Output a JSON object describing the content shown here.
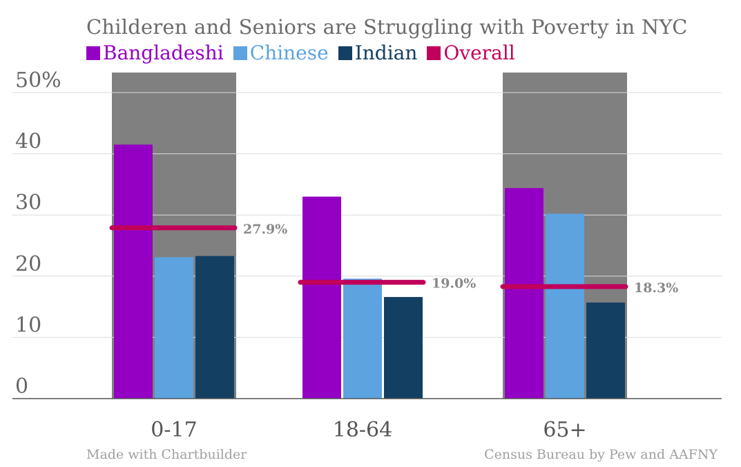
{
  "chart_data": {
    "type": "bar",
    "title": "Childeren and Seniors are Struggling with Poverty in NYC",
    "categories": [
      "0-17",
      "18-64",
      "65+"
    ],
    "series": [
      {
        "name": "Bangladeshi",
        "color": "#9400c3",
        "values": [
          41.5,
          33.0,
          34.4
        ]
      },
      {
        "name": "Chinese",
        "color": "#5ca3e0",
        "values": [
          23.1,
          19.6,
          30.2
        ]
      },
      {
        "name": "Indian",
        "color": "#133f63",
        "values": [
          23.3,
          16.6,
          15.7
        ]
      }
    ],
    "overall": {
      "name": "Overall",
      "color": "#c1005a",
      "values": [
        27.9,
        19.0,
        18.3
      ],
      "labels": [
        "27.9%",
        "19.0%",
        "18.3%"
      ]
    },
    "highlighted_categories": [
      "0-17",
      "65+"
    ],
    "highlight_color": "#808080",
    "ylim": [
      0,
      50
    ],
    "yticks": [
      0,
      10,
      20,
      30,
      40,
      50
    ],
    "ytick_labels": [
      "0",
      "10",
      "20",
      "30",
      "40",
      "50%"
    ],
    "grid": true,
    "legend_position": "top-left"
  },
  "footer": {
    "left": "Made with Chartbuilder",
    "right": "Census Bureau by Pew and AAFNY"
  }
}
